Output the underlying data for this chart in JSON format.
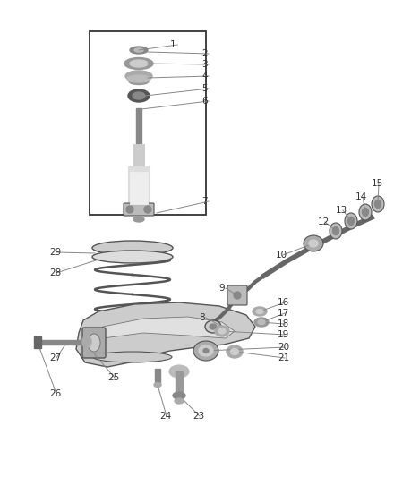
{
  "bg_color": "#ffffff",
  "line_color": "#444444",
  "label_color": "#333333",
  "leader_color": "#888888",
  "fig_width": 4.4,
  "fig_height": 5.33,
  "dpi": 100
}
